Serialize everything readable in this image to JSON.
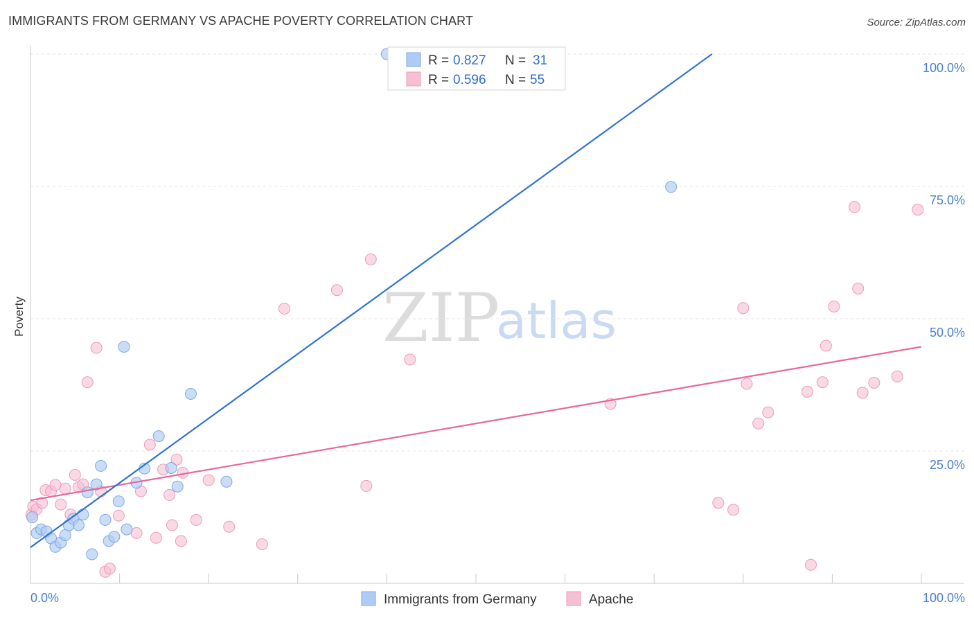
{
  "title": "IMMIGRANTS FROM GERMANY VS APACHE POVERTY CORRELATION CHART",
  "source": "Source: ZipAtlas.com",
  "watermark": {
    "zip": "ZIP",
    "atlas": "atlas"
  },
  "colors": {
    "blue": "#2f73d4",
    "blue_fill": "#aecbf3",
    "pink": "#e8679a",
    "pink_fill": "#f6bfd3",
    "tick_text": "#4a7fd0"
  },
  "legend": {
    "rows": [
      {
        "r_label": "R = ",
        "r_value": "0.827",
        "n_label": "N = ",
        "n_value": "31"
      },
      {
        "r_label": "R = ",
        "r_value": "0.596",
        "n_label": "N = ",
        "n_value": "55"
      }
    ]
  },
  "chart_data": {
    "type": "scatter",
    "title": "IMMIGRANTS FROM GERMANY VS APACHE POVERTY CORRELATION CHART",
    "xlabel": "",
    "ylabel": "Poverty",
    "xlim": [
      0,
      100
    ],
    "ylim": [
      0,
      100
    ],
    "x_tick_labels": [
      "0.0%",
      "100.0%"
    ],
    "y_tick_labels": [
      "25.0%",
      "50.0%",
      "75.0%",
      "100.0%"
    ],
    "series": [
      {
        "name": "Immigrants from Germany",
        "R": 0.827,
        "N": 31,
        "trend": {
          "x": [
            0,
            76.5
          ],
          "y": [
            6.8,
            100
          ]
        },
        "points": [
          {
            "x": 0.2,
            "y": 12.5
          },
          {
            "x": 0.7,
            "y": 9.5
          },
          {
            "x": 1.2,
            "y": 10.2
          },
          {
            "x": 1.8,
            "y": 9.8
          },
          {
            "x": 2.3,
            "y": 8.5
          },
          {
            "x": 2.8,
            "y": 6.9
          },
          {
            "x": 3.4,
            "y": 7.7
          },
          {
            "x": 3.9,
            "y": 9.1
          },
          {
            "x": 4.3,
            "y": 11.0
          },
          {
            "x": 4.8,
            "y": 12.2
          },
          {
            "x": 5.4,
            "y": 11.0
          },
          {
            "x": 5.9,
            "y": 13.0
          },
          {
            "x": 6.4,
            "y": 17.2
          },
          {
            "x": 6.9,
            "y": 5.5
          },
          {
            "x": 7.4,
            "y": 18.7
          },
          {
            "x": 7.9,
            "y": 22.2
          },
          {
            "x": 8.4,
            "y": 12.0
          },
          {
            "x": 8.8,
            "y": 8.0
          },
          {
            "x": 9.4,
            "y": 8.8
          },
          {
            "x": 9.9,
            "y": 15.5
          },
          {
            "x": 10.5,
            "y": 44.7
          },
          {
            "x": 10.8,
            "y": 10.2
          },
          {
            "x": 11.9,
            "y": 19.0
          },
          {
            "x": 12.8,
            "y": 21.7
          },
          {
            "x": 14.4,
            "y": 27.8
          },
          {
            "x": 15.8,
            "y": 21.8
          },
          {
            "x": 16.5,
            "y": 18.3
          },
          {
            "x": 18.0,
            "y": 35.8
          },
          {
            "x": 22.0,
            "y": 19.2
          },
          {
            "x": 40.0,
            "y": 100.0
          },
          {
            "x": 71.9,
            "y": 74.9
          }
        ]
      },
      {
        "name": "Apache",
        "R": 0.596,
        "N": 55,
        "trend": {
          "x": [
            0,
            100
          ],
          "y": [
            15.7,
            44.7
          ]
        },
        "points": [
          {
            "x": 0.1,
            "y": 13.0
          },
          {
            "x": 0.3,
            "y": 14.5
          },
          {
            "x": 0.7,
            "y": 14.0
          },
          {
            "x": 1.3,
            "y": 15.2
          },
          {
            "x": 1.7,
            "y": 17.6
          },
          {
            "x": 2.3,
            "y": 17.4
          },
          {
            "x": 2.8,
            "y": 18.6
          },
          {
            "x": 3.4,
            "y": 14.9
          },
          {
            "x": 3.9,
            "y": 17.9
          },
          {
            "x": 4.5,
            "y": 13.0
          },
          {
            "x": 5.0,
            "y": 20.5
          },
          {
            "x": 5.4,
            "y": 18.2
          },
          {
            "x": 5.9,
            "y": 18.7
          },
          {
            "x": 6.4,
            "y": 38.0
          },
          {
            "x": 7.4,
            "y": 44.5
          },
          {
            "x": 7.9,
            "y": 17.4
          },
          {
            "x": 8.4,
            "y": 2.2
          },
          {
            "x": 8.9,
            "y": 2.8
          },
          {
            "x": 9.9,
            "y": 12.8
          },
          {
            "x": 11.9,
            "y": 9.5
          },
          {
            "x": 12.4,
            "y": 17.4
          },
          {
            "x": 13.4,
            "y": 26.2
          },
          {
            "x": 14.1,
            "y": 8.6
          },
          {
            "x": 14.9,
            "y": 21.5
          },
          {
            "x": 15.6,
            "y": 16.7
          },
          {
            "x": 15.9,
            "y": 11.0
          },
          {
            "x": 16.4,
            "y": 23.4
          },
          {
            "x": 16.9,
            "y": 8.0
          },
          {
            "x": 17.1,
            "y": 20.9
          },
          {
            "x": 18.6,
            "y": 12.0
          },
          {
            "x": 20.0,
            "y": 19.5
          },
          {
            "x": 22.3,
            "y": 10.7
          },
          {
            "x": 26.0,
            "y": 7.4
          },
          {
            "x": 28.5,
            "y": 51.9
          },
          {
            "x": 34.4,
            "y": 55.4
          },
          {
            "x": 37.7,
            "y": 18.4
          },
          {
            "x": 38.2,
            "y": 61.2
          },
          {
            "x": 42.6,
            "y": 42.3
          },
          {
            "x": 65.1,
            "y": 33.9
          },
          {
            "x": 77.2,
            "y": 15.2
          },
          {
            "x": 78.9,
            "y": 13.9
          },
          {
            "x": 80.0,
            "y": 52.0
          },
          {
            "x": 80.4,
            "y": 37.7
          },
          {
            "x": 81.7,
            "y": 30.2
          },
          {
            "x": 82.8,
            "y": 32.3
          },
          {
            "x": 87.2,
            "y": 36.2
          },
          {
            "x": 87.6,
            "y": 3.5
          },
          {
            "x": 88.9,
            "y": 38.0
          },
          {
            "x": 89.3,
            "y": 44.9
          },
          {
            "x": 90.2,
            "y": 52.3
          },
          {
            "x": 92.5,
            "y": 71.1
          },
          {
            "x": 92.9,
            "y": 55.7
          },
          {
            "x": 93.4,
            "y": 36.0
          },
          {
            "x": 94.7,
            "y": 37.9
          },
          {
            "x": 97.3,
            "y": 39.1
          },
          {
            "x": 99.6,
            "y": 70.6
          }
        ]
      }
    ]
  }
}
